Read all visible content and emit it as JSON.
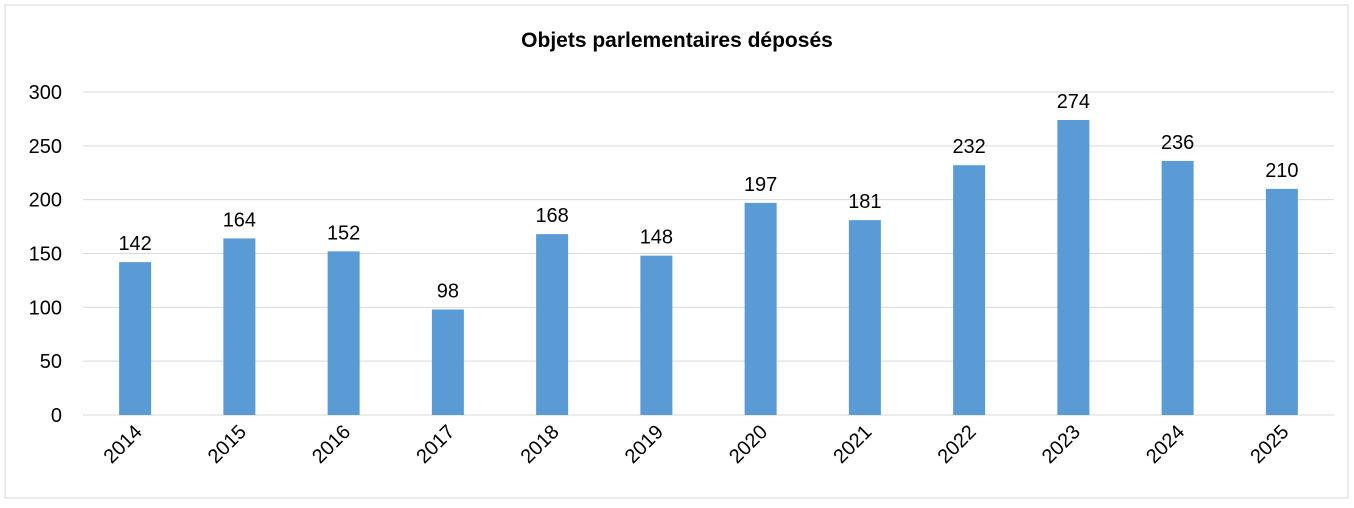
{
  "chart_data": {
    "type": "bar",
    "title": "Objets parlementaires déposés",
    "categories": [
      "2014",
      "2015",
      "2016",
      "2017",
      "2018",
      "2019",
      "2020",
      "2021",
      "2022",
      "2023",
      "2024",
      "2025"
    ],
    "values": [
      142,
      164,
      152,
      98,
      168,
      148,
      197,
      181,
      232,
      274,
      236,
      210
    ],
    "color": "#5b9bd5",
    "ylim": [
      0,
      300
    ],
    "yticks": [
      0,
      50,
      100,
      150,
      200,
      250,
      300
    ],
    "grid": true
  }
}
